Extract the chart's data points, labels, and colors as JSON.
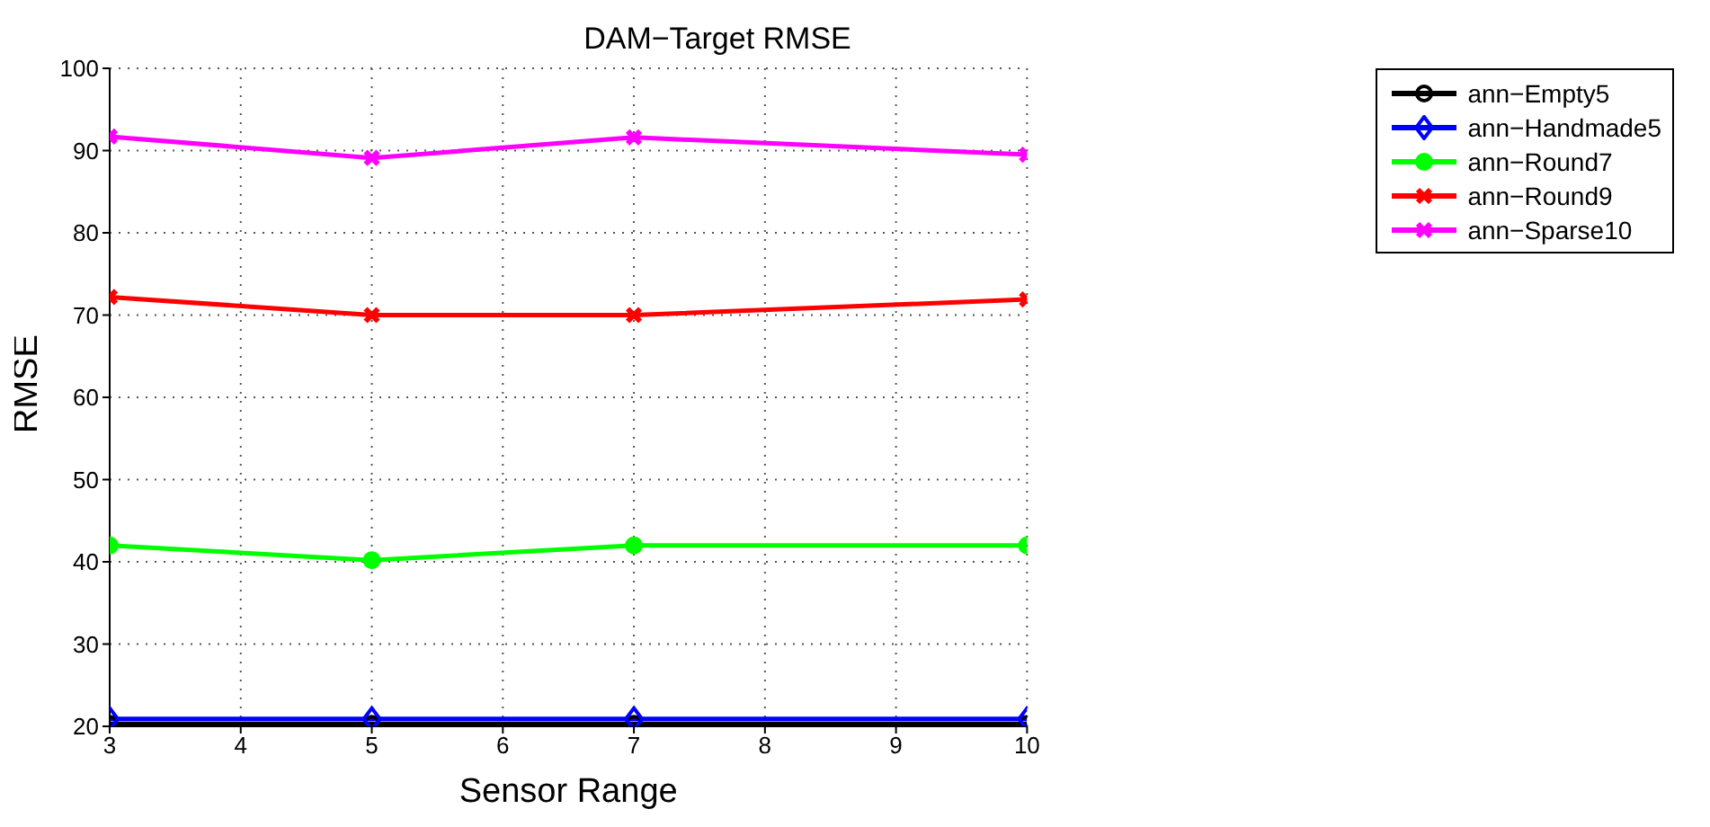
{
  "chart_data": {
    "type": "line",
    "title": "DAM−Target RMSE",
    "xlabel": "Sensor Range",
    "ylabel": "RMSE",
    "x": [
      3,
      5,
      7,
      10
    ],
    "series": [
      {
        "name": "ann−Empty5",
        "color": "#000000",
        "marker": "circle",
        "values": [
          20.3,
          20.3,
          20.3,
          20.3
        ]
      },
      {
        "name": "ann−Handmade5",
        "color": "#0000ff",
        "marker": "diamond",
        "values": [
          20.9,
          20.9,
          20.9,
          20.9
        ]
      },
      {
        "name": "ann−Round7",
        "color": "#00ff00",
        "marker": "circle",
        "values": [
          42,
          40.2,
          42,
          42
        ]
      },
      {
        "name": "ann−Round9",
        "color": "#ff0000",
        "marker": "cross",
        "values": [
          72.2,
          70,
          70,
          71.9
        ]
      },
      {
        "name": "ann−Sparse10",
        "color": "#ff00ff",
        "marker": "cross",
        "values": [
          91.7,
          89.1,
          91.6,
          89.5
        ]
      }
    ],
    "xlim": [
      3,
      10
    ],
    "xticks": [
      3,
      4,
      5,
      6,
      7,
      8,
      9,
      10
    ],
    "ylim": [
      20,
      100
    ],
    "yticks": [
      20,
      30,
      40,
      50,
      60,
      70,
      80,
      90,
      100
    ],
    "grid": true,
    "legend": "top right",
    "line_style": "solid"
  }
}
